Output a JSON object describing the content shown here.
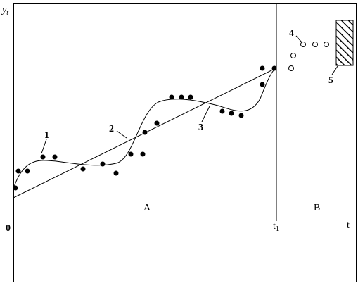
{
  "axis": {
    "y_label_main": "y",
    "y_label_sub": "t",
    "origin": "0",
    "t1_main": "t",
    "t1_sub": "1",
    "t_end": "t"
  },
  "regions": {
    "a": "A",
    "b": "B"
  },
  "callouts": {
    "c1": "1",
    "c2": "2",
    "c3": "3",
    "c4": "4",
    "c5": "5"
  }
}
